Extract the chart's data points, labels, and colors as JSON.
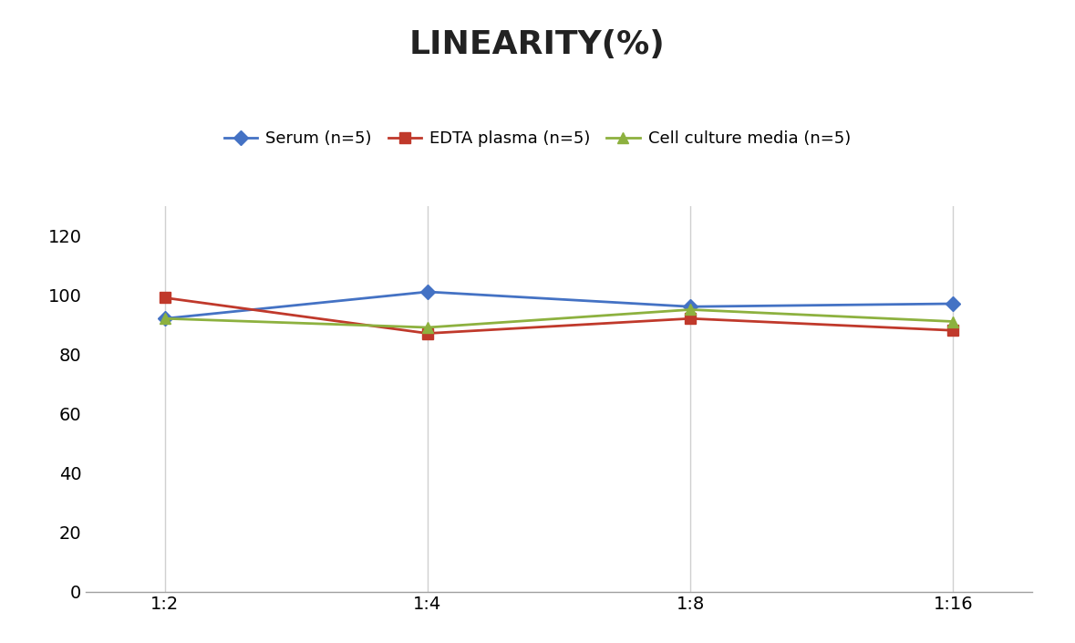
{
  "title": "LINEARITY(%)",
  "x_labels": [
    "1:2",
    "1:4",
    "1:8",
    "1:16"
  ],
  "x_positions": [
    0,
    1,
    2,
    3
  ],
  "series": [
    {
      "name": "Serum (n=5)",
      "values": [
        92,
        101,
        96,
        97
      ],
      "color": "#4472C4",
      "marker": "D",
      "marker_size": 8
    },
    {
      "name": "EDTA plasma (n=5)",
      "values": [
        99,
        87,
        92,
        88
      ],
      "color": "#C0392B",
      "marker": "s",
      "marker_size": 8
    },
    {
      "name": "Cell culture media (n=5)",
      "values": [
        92,
        89,
        95,
        91
      ],
      "color": "#8DB13F",
      "marker": "^",
      "marker_size": 8
    }
  ],
  "ylim": [
    0,
    130
  ],
  "yticks": [
    0,
    20,
    40,
    60,
    80,
    100,
    120
  ],
  "title_fontsize": 26,
  "legend_fontsize": 13,
  "tick_fontsize": 14,
  "background_color": "#FFFFFF",
  "grid_color": "#D0D0D0",
  "line_width": 2.0
}
